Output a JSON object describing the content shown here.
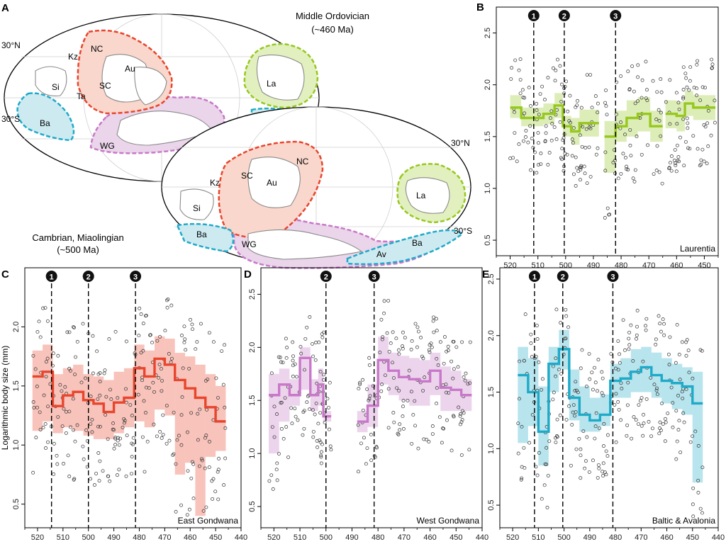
{
  "panel_a": {
    "letter": "A",
    "ordovician_title": "Middle Ordovician",
    "ordovician_age": "(~460 Ma)",
    "cambrian_title": "Cambrian, Miaolingian",
    "cambrian_age": "(~500 Ma)",
    "ord_lat_north": "30°N",
    "ord_lat_south": "30°S",
    "cam_lat_north": "30°N",
    "cam_lat_south": "30°S",
    "ordovician_labels": [
      "Kz",
      "NC",
      "Si",
      "Au",
      "SC",
      "Ta",
      "Ba",
      "WG",
      "La",
      "Av"
    ],
    "cambrian_labels": [
      "Kz",
      "NC",
      "Au",
      "SC",
      "Si",
      "Ba",
      "WG",
      "La",
      "Av",
      "Ba"
    ],
    "colors": {
      "north_china": "#e8452c",
      "west_gondwana": "#c878c8",
      "laurentia": "#96c81e",
      "baltica": "#1eaac8"
    }
  },
  "chart_data": [
    {
      "type": "line",
      "panel": "B",
      "region": "Laurentia",
      "color": "#96c81e",
      "xlabel": "",
      "ylabel": "",
      "xlim": [
        525,
        445
      ],
      "ylim": [
        0.35,
        2.75
      ],
      "xticks": [
        520,
        510,
        500,
        490,
        480,
        470,
        460,
        450
      ],
      "yticks": [
        0.5,
        1.0,
        1.5,
        2.0,
        2.5
      ],
      "events": [
        {
          "label": "1",
          "x": 511.5
        },
        {
          "label": "2",
          "x": 500.5
        },
        {
          "label": "3",
          "x": 482
        }
      ],
      "segments": [
        {
          "x": [
            518,
            514,
            510,
            506,
            502,
            500,
            496,
            494,
            490
          ],
          "y": [
            1.78,
            1.68,
            1.68,
            1.72,
            1.8,
            1.6,
            1.55,
            1.63,
            1.63
          ],
          "ci_low": [
            1.68,
            1.6,
            1.6,
            1.62,
            1.68,
            1.5,
            1.42,
            1.5,
            1.5
          ],
          "ci_high": [
            1.9,
            1.78,
            1.78,
            1.82,
            1.92,
            1.7,
            1.68,
            1.76,
            1.76
          ]
        },
        {
          "x": [
            484,
            480,
            476,
            472,
            467
          ],
          "y": [
            1.5,
            1.6,
            1.68,
            1.72,
            1.6
          ],
          "ci_low": [
            1.15,
            1.45,
            1.5,
            1.55,
            1.45
          ],
          "ci_high": [
            1.65,
            1.75,
            1.85,
            1.88,
            1.75
          ]
        },
        {
          "x": [
            462,
            458,
            456,
            452,
            448
          ],
          "y": [
            1.72,
            1.7,
            1.82,
            1.78,
            1.78
          ],
          "ci_low": [
            1.58,
            1.55,
            1.7,
            1.66,
            1.66
          ],
          "ci_high": [
            1.85,
            1.84,
            1.94,
            1.9,
            1.9
          ]
        }
      ]
    },
    {
      "type": "line",
      "panel": "C",
      "region": "East Gondwana",
      "color": "#e8452c",
      "xlabel": "",
      "ylabel": "Logarithmic body size (mm)",
      "xlim": [
        525,
        440
      ],
      "ylim": [
        0.3,
        2.5
      ],
      "xticks": [
        520,
        510,
        500,
        490,
        480,
        470,
        460,
        450,
        440
      ],
      "yticks": [
        0.5,
        1.0,
        1.5,
        2.0
      ],
      "events": [
        {
          "label": "1",
          "x": 514.5
        },
        {
          "label": "2",
          "x": 500
        },
        {
          "label": "3",
          "x": 481.5
        }
      ],
      "segments": [
        {
          "x": [
            520,
            516,
            512,
            508,
            504,
            500,
            496,
            492,
            488,
            484,
            480,
            476,
            472,
            468,
            464,
            460,
            456,
            452,
            448
          ],
          "y": [
            1.58,
            1.62,
            1.33,
            1.42,
            1.45,
            1.38,
            1.35,
            1.28,
            1.36,
            1.4,
            1.65,
            1.58,
            1.73,
            1.68,
            1.55,
            1.48,
            1.4,
            1.32,
            1.2
          ],
          "ci_low": [
            1.12,
            1.2,
            1.1,
            1.15,
            1.12,
            1.08,
            1.05,
            1.05,
            1.1,
            1.15,
            1.2,
            1.15,
            1.3,
            1.25,
            0.75,
            0.85,
            0.4,
            0.9,
            0.95
          ],
          "ci_high": [
            1.8,
            1.85,
            1.6,
            1.65,
            1.68,
            1.6,
            1.58,
            1.55,
            1.62,
            1.65,
            1.85,
            1.8,
            1.92,
            1.9,
            1.78,
            1.75,
            1.68,
            1.6,
            1.5
          ]
        }
      ]
    },
    {
      "type": "line",
      "panel": "D",
      "region": "West Gondwana",
      "color": "#c878c8",
      "xlabel": "",
      "ylabel": "",
      "xlim": [
        525,
        440
      ],
      "ylim": [
        0.3,
        2.75
      ],
      "xticks": [
        520,
        510,
        500,
        490,
        480,
        470,
        460,
        450,
        440
      ],
      "yticks": [
        0.5,
        1.0,
        1.5,
        2.0,
        2.5
      ],
      "events": [
        {
          "label": "2",
          "x": 500
        },
        {
          "label": "3",
          "x": 481.5
        }
      ],
      "segments": [
        {
          "x": [
            520,
            516,
            512,
            508,
            504,
            502,
            500
          ],
          "y": [
            1.55,
            1.65,
            1.55,
            1.9,
            1.55,
            1.65,
            1.35
          ],
          "ci_low": [
            1.0,
            1.3,
            1.45,
            1.6,
            1.4,
            1.45,
            1.3
          ],
          "ci_high": [
            1.75,
            1.8,
            1.7,
            2.0,
            1.7,
            1.8,
            1.4
          ]
        },
        {
          "x": [
            486,
            482,
            478,
            474,
            470,
            466,
            462,
            458,
            454,
            450,
            446
          ],
          "y": [
            1.3,
            1.45,
            1.88,
            1.78,
            1.72,
            1.7,
            1.68,
            1.78,
            1.62,
            1.6,
            1.55
          ],
          "ci_low": [
            1.2,
            1.25,
            1.65,
            1.55,
            1.5,
            1.45,
            1.45,
            1.55,
            1.4,
            1.4,
            1.4
          ],
          "ci_high": [
            1.4,
            1.65,
            2.1,
            1.95,
            1.92,
            1.9,
            1.88,
            1.95,
            1.82,
            1.78,
            1.7
          ]
        }
      ]
    },
    {
      "type": "line",
      "panel": "E",
      "region": "Baltic & Avalonia",
      "color": "#1eaac8",
      "xlabel": "",
      "ylabel": "",
      "xlim": [
        525,
        440
      ],
      "ylim": [
        0.3,
        2.6
      ],
      "xticks": [
        520,
        510,
        500,
        490,
        480,
        470,
        460,
        450,
        440
      ],
      "yticks": [
        0.5,
        1.0,
        1.5,
        2.0,
        2.5
      ],
      "events": [
        {
          "label": "1",
          "x": 511.5
        },
        {
          "label": "2",
          "x": 500.5
        },
        {
          "label": "3",
          "x": 481
        }
      ],
      "segments": [
        {
          "x": [
            516,
            512,
            508,
            504,
            500,
            496,
            492,
            488,
            484,
            480,
            476,
            472,
            468,
            464,
            460,
            456,
            452,
            448
          ],
          "y": [
            1.65,
            1.5,
            1.15,
            1.75,
            1.88,
            1.45,
            1.3,
            1.25,
            1.3,
            1.6,
            1.62,
            1.68,
            1.72,
            1.65,
            1.6,
            1.58,
            1.55,
            1.4
          ],
          "ci_low": [
            1.05,
            1.2,
            0.85,
            1.5,
            1.7,
            1.25,
            1.15,
            1.15,
            1.2,
            1.45,
            1.45,
            1.5,
            1.5,
            1.45,
            1.4,
            1.35,
            1.3,
            0.7
          ],
          "ci_high": [
            1.9,
            1.8,
            1.55,
            1.9,
            2.05,
            1.7,
            1.55,
            1.45,
            1.48,
            1.75,
            1.8,
            1.88,
            1.9,
            1.85,
            1.8,
            1.75,
            1.72,
            1.68
          ]
        }
      ]
    }
  ]
}
